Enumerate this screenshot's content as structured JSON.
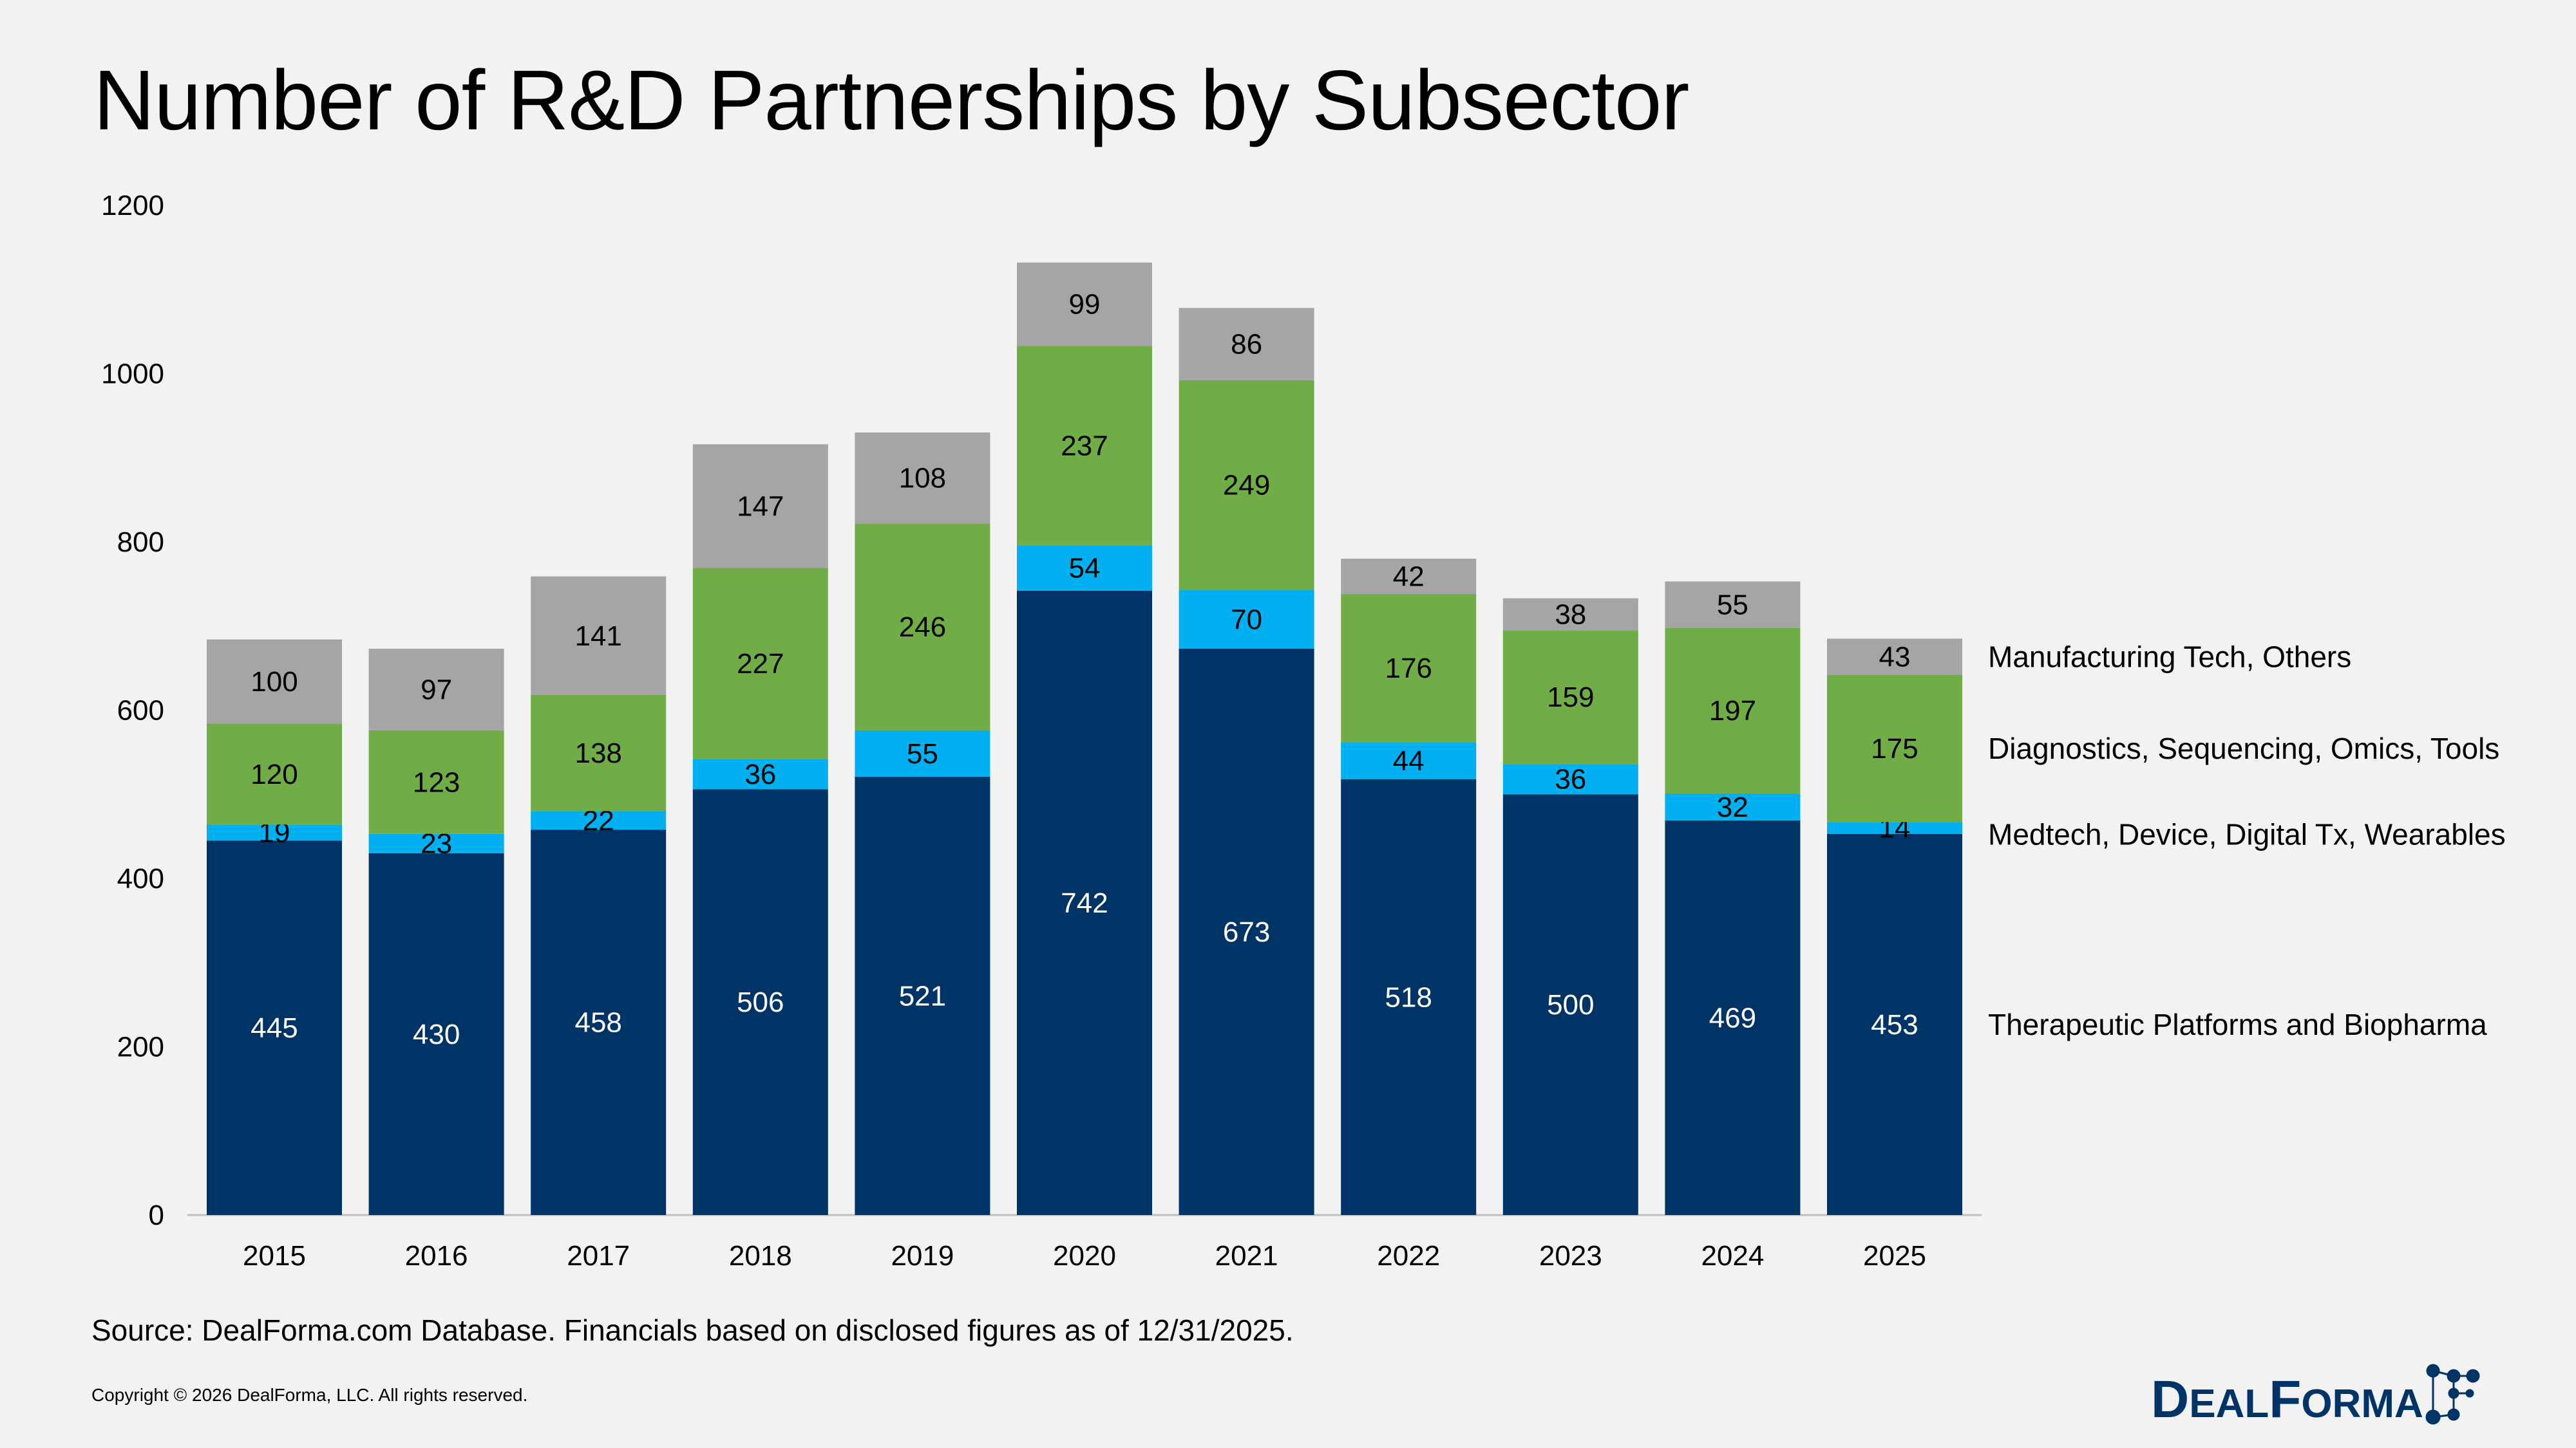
{
  "title": "Number of R&D Partnerships by Subsector",
  "source": "Source: DealForma.com Database. Financials based on disclosed figures as of 12/31/2025.",
  "copyright": "Copyright © 2026 DealForma, LLC. All rights reserved.",
  "logo_text": "DEALFORMA",
  "chart_data": {
    "type": "bar",
    "stacked": true,
    "title": "Number of R&D Partnerships by Subsector",
    "xlabel": "",
    "ylabel": "",
    "ylim": [
      0,
      1200
    ],
    "yticks": [
      0,
      200,
      400,
      600,
      800,
      1000,
      1200
    ],
    "grid": false,
    "legend": "right, labels aligned to last bar segments",
    "categories": [
      "2015",
      "2016",
      "2017",
      "2018",
      "2019",
      "2020",
      "2021",
      "2022",
      "2023",
      "2024",
      "2025"
    ],
    "series": [
      {
        "name": "Therapeutic Platforms and Biopharma",
        "color": "#003366",
        "label_color": "#ffffff",
        "values": [
          445,
          430,
          458,
          506,
          521,
          742,
          673,
          518,
          500,
          469,
          453
        ]
      },
      {
        "name": "Medtech, Device, Digital Tx, Wearables",
        "color": "#00b0f0",
        "label_color": "#000000",
        "values": [
          19,
          23,
          22,
          36,
          55,
          54,
          70,
          44,
          36,
          32,
          14
        ]
      },
      {
        "name": "Diagnostics, Sequencing, Omics, Tools",
        "color": "#70ad47",
        "label_color": "#000000",
        "values": [
          120,
          123,
          138,
          227,
          246,
          237,
          249,
          176,
          159,
          197,
          175
        ]
      },
      {
        "name": "Manufacturing Tech, Others",
        "color": "#a5a5a5",
        "label_color": "#000000",
        "values": [
          100,
          97,
          141,
          147,
          108,
          99,
          86,
          42,
          38,
          55,
          43
        ]
      }
    ]
  }
}
